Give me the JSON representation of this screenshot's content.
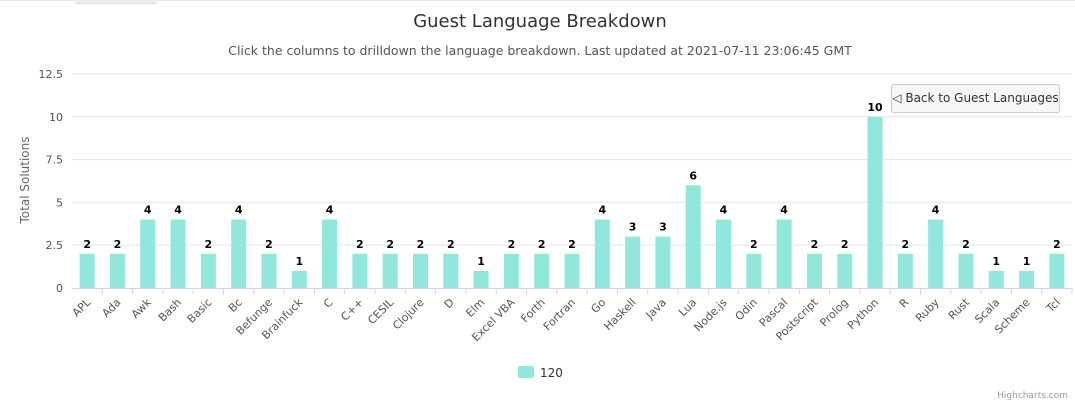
{
  "chart_data": {
    "type": "bar",
    "title": "Guest Language Breakdown",
    "subtitle": "Click the columns to drilldown the language breakdown. Last updated at 2021-07-11 23:06:45 GMT",
    "ylabel": "Total Solutions",
    "xlabel": "",
    "ylim": [
      0,
      12.5
    ],
    "yticks": [
      "0",
      "2.5",
      "5",
      "7.5",
      "10",
      "12.5"
    ],
    "categories": [
      "APL",
      "Ada",
      "Awk",
      "Bash",
      "Basic",
      "Bc",
      "Befunge",
      "Brainfuck",
      "C",
      "C++",
      "CESIL",
      "Clojure",
      "D",
      "Elm",
      "Excel VBA",
      "Forth",
      "Fortran",
      "Go",
      "Haskell",
      "Java",
      "Lua",
      "Node.js",
      "Odin",
      "Pascal",
      "Postscript",
      "Prolog",
      "Python",
      "R",
      "Ruby",
      "Rust",
      "Scala",
      "Scheme",
      "Tcl"
    ],
    "series": [
      {
        "name": "120",
        "color": "#90e8dc",
        "values": [
          2,
          2,
          4,
          4,
          2,
          4,
          2,
          1,
          4,
          2,
          2,
          2,
          2,
          1,
          2,
          2,
          2,
          4,
          3,
          3,
          6,
          4,
          2,
          4,
          2,
          2,
          10,
          2,
          4,
          2,
          1,
          1,
          2
        ]
      }
    ],
    "grid": true,
    "legend": "bottom-center"
  },
  "drilldown_button": {
    "label": "◁ Back to Guest Languages"
  },
  "credits": "Highcharts.com"
}
